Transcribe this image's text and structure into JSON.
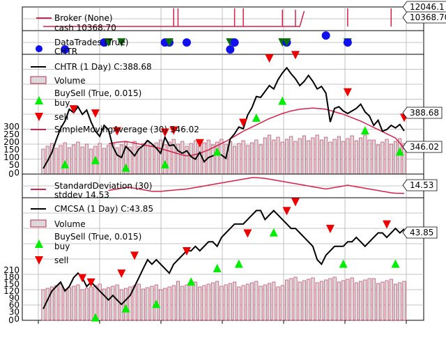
{
  "colors": {
    "price": "#000000",
    "sma": "#d6204a",
    "volume_fill": "#d9d9d9",
    "volume_edge": "#c8244e",
    "buy": "#00ee00",
    "sell": "#ee0000",
    "trades_buy": "#1010ee",
    "trades_sell": "#087208",
    "broker_cash": "#d6204a",
    "broker_value": "#1010ee",
    "grid": "#b0b0b0"
  },
  "chart_data": [
    {
      "type": "line",
      "panel": "broker",
      "legend": [
        "Broker (None)",
        "cash 10368.70"
      ],
      "series": [
        {
          "name": "cash",
          "values": [
            10000,
            10000,
            10000,
            10000,
            10000,
            10000,
            10000,
            10000,
            10000,
            10000,
            10000,
            10000,
            10000,
            10000,
            10000,
            10000,
            10000,
            10000,
            10000,
            10000,
            10000,
            10000,
            10000,
            10000,
            10000,
            10000,
            10000,
            10000,
            10000,
            10000,
            10000,
            10000,
            10000,
            10000,
            10000,
            10000,
            10000,
            10000,
            10000,
            10000,
            10000,
            10000,
            10000,
            10000,
            10000,
            10000,
            10000,
            10000,
            10000,
            10000,
            10000,
            10000,
            10000,
            10000,
            10000,
            10000,
            10000,
            10000,
            10000,
            10000,
            10368.7
          ]
        },
        {
          "name": "value",
          "values": []
        }
      ],
      "value_labels": [
        "12046.1",
        "10368.70"
      ]
    },
    {
      "type": "scatter",
      "panel": "datatrades",
      "legend": [
        "DataTrades (True)",
        "CHTR"
      ],
      "markers": [
        {
          "x": 5,
          "kind": "buy",
          "row": 1
        },
        {
          "x": 14,
          "kind": "buy",
          "row": 0
        },
        {
          "x": 15,
          "kind": "sell",
          "row": 0
        },
        {
          "x": 18,
          "kind": "sell",
          "row": 0
        },
        {
          "x": 28,
          "kind": "buy",
          "row": 0
        },
        {
          "x": 29,
          "kind": "buy",
          "row": 0
        },
        {
          "x": 29,
          "kind": "sell",
          "row": 0
        },
        {
          "x": 33,
          "kind": "buy",
          "row": 0
        },
        {
          "x": 43,
          "kind": "sell",
          "row": 0
        },
        {
          "x": 43,
          "kind": "buy",
          "row": 1
        },
        {
          "x": 44,
          "kind": "buy",
          "row": 0
        },
        {
          "x": 55,
          "kind": "sell",
          "row": 0
        },
        {
          "x": 56,
          "kind": "buy",
          "row": 0
        },
        {
          "x": 56,
          "kind": "sell",
          "row": 0
        },
        {
          "x": 65,
          "kind": "buy",
          "row": -1
        },
        {
          "x": 70,
          "kind": "sell",
          "row": 0
        },
        {
          "x": 70,
          "kind": "buy",
          "row": 0
        }
      ]
    },
    {
      "type": "line",
      "panel": "chtr",
      "legend": [
        "CHTR (1 Day) C:388.68",
        "Volume",
        "BuySell (True, 0.015)",
        "buy",
        "sell",
        "SimpleMovingAverage (30) 346.02"
      ],
      "series": [
        {
          "name": "close",
          "values": [
            300,
            318,
            338,
            368,
            395,
            412,
            440,
            432,
            446,
            428,
            438,
            410,
            388,
            376,
            402,
            392,
            352,
            332,
            326,
            352,
            342,
            330,
            346,
            354,
            366,
            358,
            348,
            336,
            374,
            354,
            356,
            342,
            336,
            342,
            328,
            322,
            338,
            316,
            326,
            330,
            336,
            332,
            324,
            370,
            382,
            398,
            394,
            426,
            444,
            470,
            468,
            482,
            496,
            488,
            510,
            526,
            538,
            524,
            512,
            496,
            506,
            520,
            506,
            488,
            494,
            478,
            410,
            442,
            446,
            436,
            430,
            436,
            442,
            452,
            434,
            424,
            402,
            414,
            388,
            392,
            402,
            396,
            404,
            388.68
          ]
        },
        {
          "name": "sma",
          "values": [
            null,
            null,
            null,
            null,
            null,
            null,
            null,
            null,
            null,
            null,
            null,
            null,
            null,
            null,
            null,
            358,
            360,
            362,
            363,
            364,
            362,
            360,
            358,
            356,
            354,
            352,
            350,
            347,
            344,
            341,
            338,
            335,
            332,
            330,
            331,
            333,
            336,
            340,
            344,
            349,
            354,
            359,
            364,
            370,
            376,
            382,
            388,
            393,
            398,
            403,
            408,
            413,
            418,
            422,
            426,
            430,
            433,
            436,
            438,
            440,
            441,
            442,
            443,
            442,
            441,
            440,
            437,
            434,
            431,
            428,
            424,
            420,
            416,
            412,
            407,
            402,
            397,
            392,
            387,
            382,
            377,
            372,
            360,
            346.02
          ]
        }
      ],
      "buy_markers": [
        [
          5,
          330
        ],
        [
          12,
          340
        ],
        [
          19,
          322
        ],
        [
          28,
          330
        ],
        [
          40,
          360
        ],
        [
          49,
          440
        ],
        [
          55,
          480
        ],
        [
          74,
          410
        ],
        [
          82,
          360
        ]
      ],
      "sell_markers": [
        [
          7,
          420
        ],
        [
          12,
          410
        ],
        [
          17,
          368
        ],
        [
          28,
          365
        ],
        [
          30,
          370
        ],
        [
          36,
          340
        ],
        [
          46,
          388
        ],
        [
          52,
          540
        ],
        [
          58,
          548
        ],
        [
          70,
          460
        ],
        [
          83,
          400
        ]
      ],
      "value_labels": [
        "388.68",
        "346.02"
      ],
      "volume_label": "0",
      "volume_axis_labels": [
        "300",
        "250",
        "200",
        "150",
        "100",
        "50",
        "0"
      ]
    },
    {
      "type": "line",
      "panel": "stddev",
      "legend": [
        "StandardDeviation (30)",
        "stddev 14.53"
      ],
      "series": [
        {
          "name": "stddev",
          "values": [
            null,
            null,
            null,
            null,
            null,
            null,
            null,
            null,
            null,
            null,
            null,
            null,
            null,
            null,
            null,
            22,
            24,
            26,
            28,
            30,
            30,
            28,
            26,
            24,
            22,
            20,
            20,
            20,
            21,
            22,
            23,
            24,
            25,
            26,
            28,
            30,
            32,
            34,
            36,
            38,
            40,
            42,
            44,
            46,
            48,
            50,
            52,
            54,
            56,
            56,
            55,
            54,
            52,
            50,
            48,
            46,
            44,
            42,
            40,
            38,
            36,
            34,
            32,
            30,
            28,
            26,
            28,
            30,
            32,
            34,
            36,
            34,
            32,
            30,
            28,
            26,
            24,
            22,
            20,
            18,
            16,
            15,
            14.7,
            14.53
          ]
        }
      ],
      "value_labels": [
        "14.53"
      ]
    },
    {
      "type": "line",
      "panel": "cmcsa",
      "legend": [
        "CMCSA (1 Day) C:43.85",
        "Volume",
        "BuySell (True, 0.015)",
        "buy",
        "sell"
      ],
      "series": [
        {
          "name": "close",
          "values": [
            26,
            28,
            30,
            31,
            32,
            30,
            31,
            33,
            34,
            33,
            31,
            32,
            31,
            30,
            29,
            28,
            29,
            28,
            27,
            28,
            29,
            31,
            33,
            35,
            37,
            36,
            37,
            36,
            35,
            34,
            36,
            37,
            38,
            39,
            39,
            40,
            39,
            40,
            41,
            41,
            40,
            42,
            43,
            44,
            45,
            45,
            45,
            46,
            47,
            48,
            48,
            46,
            47,
            48,
            47,
            46,
            45,
            44,
            44,
            43,
            42,
            41,
            40,
            37,
            36,
            38,
            39,
            40,
            40,
            40,
            41,
            41,
            42,
            41,
            40,
            41,
            42,
            43,
            43,
            42,
            43,
            44,
            43,
            43.85
          ]
        }
      ],
      "buy_markers": [
        [
          12,
          26
        ],
        [
          19,
          28
        ],
        [
          26,
          29
        ],
        [
          34,
          34
        ],
        [
          40,
          37
        ],
        [
          45,
          38
        ],
        [
          53,
          45
        ],
        [
          69,
          38
        ],
        [
          81,
          38
        ]
      ],
      "sell_markers": [
        [
          9,
          31
        ],
        [
          11,
          30
        ],
        [
          18,
          32
        ],
        [
          21,
          36
        ],
        [
          33,
          37
        ],
        [
          47,
          41
        ],
        [
          56,
          46
        ],
        [
          58,
          48
        ],
        [
          66,
          42
        ],
        [
          79,
          43
        ]
      ],
      "value_labels": [
        "43.85"
      ],
      "volume_label": "0",
      "volume_axis_labels": [
        "210",
        "180",
        "150",
        "120",
        "90",
        "60",
        "30",
        "0"
      ]
    }
  ]
}
